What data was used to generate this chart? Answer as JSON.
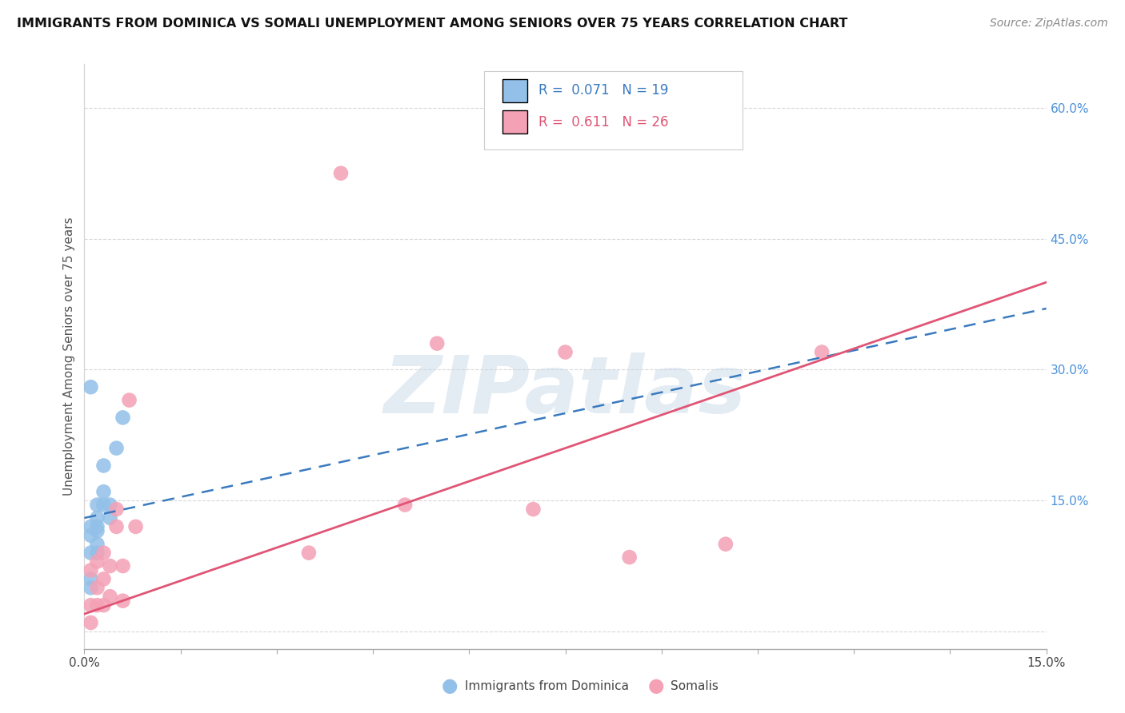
{
  "title": "IMMIGRANTS FROM DOMINICA VS SOMALI UNEMPLOYMENT AMONG SENIORS OVER 75 YEARS CORRELATION CHART",
  "source": "Source: ZipAtlas.com",
  "ylabel": "Unemployment Among Seniors over 75 years",
  "xlim": [
    0.0,
    0.15
  ],
  "ylim": [
    -0.02,
    0.65
  ],
  "xticks": [
    0.0,
    0.015,
    0.03,
    0.045,
    0.06,
    0.075,
    0.09,
    0.105,
    0.12,
    0.135,
    0.15
  ],
  "yticks_right": [
    0.0,
    0.15,
    0.3,
    0.45,
    0.6
  ],
  "ytick_right_labels": [
    "",
    "15.0%",
    "30.0%",
    "45.0%",
    "60.0%"
  ],
  "dominica_R": 0.071,
  "dominica_N": 19,
  "somali_R": 0.611,
  "somali_N": 26,
  "dominica_color": "#92c0e8",
  "somali_color": "#f4a0b5",
  "dominica_line_color": "#3a7abf",
  "somali_line_color": "#e05575",
  "dominica_x": [
    0.001,
    0.001,
    0.001,
    0.001,
    0.001,
    0.001,
    0.002,
    0.002,
    0.002,
    0.002,
    0.002,
    0.002,
    0.003,
    0.003,
    0.003,
    0.004,
    0.004,
    0.005,
    0.006
  ],
  "dominica_y": [
    0.05,
    0.06,
    0.09,
    0.11,
    0.12,
    0.28,
    0.09,
    0.1,
    0.115,
    0.12,
    0.13,
    0.145,
    0.145,
    0.16,
    0.19,
    0.13,
    0.145,
    0.21,
    0.245
  ],
  "somali_x": [
    0.001,
    0.001,
    0.001,
    0.002,
    0.002,
    0.002,
    0.003,
    0.003,
    0.003,
    0.004,
    0.004,
    0.005,
    0.005,
    0.006,
    0.006,
    0.007,
    0.008,
    0.035,
    0.04,
    0.05,
    0.055,
    0.07,
    0.075,
    0.085,
    0.1,
    0.115
  ],
  "somali_y": [
    0.01,
    0.03,
    0.07,
    0.03,
    0.05,
    0.08,
    0.03,
    0.06,
    0.09,
    0.04,
    0.075,
    0.12,
    0.14,
    0.035,
    0.075,
    0.265,
    0.12,
    0.09,
    0.525,
    0.145,
    0.33,
    0.14,
    0.32,
    0.085,
    0.1,
    0.32
  ],
  "watermark_text": "ZIPatlas",
  "grid_color": "#d8d8d8",
  "background_color": "#ffffff"
}
